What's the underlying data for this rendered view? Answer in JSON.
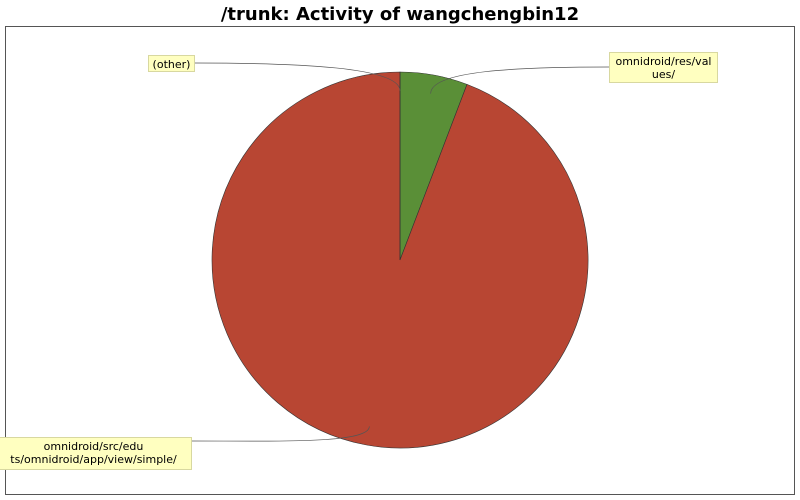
{
  "chart_data": {
    "type": "pie",
    "title": "/trunk: Activity of wangchengbin12",
    "categories": [
      "omnidroid/res/val\nues/",
      "omnidroid/src/edu\nts/omnidroid/app/view/simple/",
      "(other)"
    ],
    "values": [
      5.8,
      94.2,
      0
    ],
    "colors": [
      "#5a8f37",
      "#b84633",
      "#4a6fa5"
    ]
  }
}
